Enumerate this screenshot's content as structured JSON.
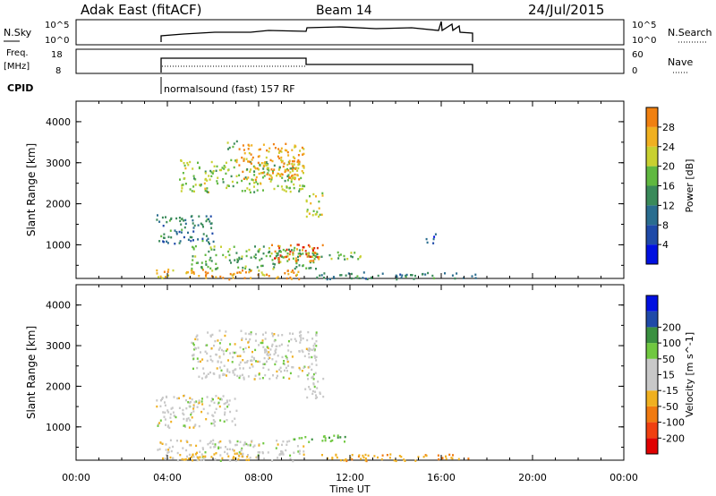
{
  "header": {
    "station": "Adak East (fitACF)",
    "beam": "Beam 14",
    "date": "24/Jul/2015"
  },
  "strip_labels": {
    "nsky": "N.Sky",
    "nsky_top": "10^5",
    "nsky_bottom": "10^0",
    "freq": "Freq.",
    "freq_unit": "[MHz]",
    "freq_top": "18",
    "freq_bottom": "8",
    "cpid": "CPID",
    "nsearch": "N.Search",
    "nsearch_top": "10^5",
    "nsearch_bottom": "10^0",
    "nave": "Nave",
    "nave_top": "60",
    "nave_bottom": "0",
    "cpid_text": "normalsound (fast) 157 RF"
  },
  "colors": {
    "power": [
      "#0010e0",
      "#1f4aa8",
      "#2a6d8f",
      "#3a8a5a",
      "#60b840",
      "#c8d030",
      "#f0b020",
      "#f08010",
      "#e03010",
      "#e00000"
    ],
    "velocity": [
      "#e00000",
      "#f04010",
      "#f07a10",
      "#f0b020",
      "#c8c8c8",
      "#c8c8c8",
      "#70c840",
      "#3a9040",
      "#1f4aa8",
      "#0010e0"
    ]
  },
  "chart_data": [
    {
      "type": "heatmap",
      "name": "power",
      "xlabel": "",
      "ylabel": "Slant Range [km]",
      "xlim": [
        "00:00",
        "24:00"
      ],
      "ylim": [
        180,
        4500
      ],
      "yticks": [
        "1000",
        "2000",
        "3000",
        "4000"
      ],
      "colorbar_label": "Power [dB]",
      "colorbar_ticks": [
        "4",
        "8",
        "12",
        "16",
        "20",
        "24",
        "28"
      ],
      "regions": [
        {
          "t0": 3.5,
          "t1": 10.0,
          "r0": 180,
          "r1": 420,
          "value": 20
        },
        {
          "t0": 3.5,
          "t1": 6.0,
          "r0": 1050,
          "r1": 1750,
          "value": 8
        },
        {
          "t0": 5.0,
          "t1": 10.5,
          "r0": 420,
          "r1": 1000,
          "value": 12
        },
        {
          "t0": 4.5,
          "t1": 10.0,
          "r0": 2300,
          "r1": 3100,
          "value": 14
        },
        {
          "t0": 7.0,
          "t1": 10.0,
          "r0": 2600,
          "r1": 3500,
          "value": 20
        },
        {
          "t0": 8.5,
          "t1": 10.8,
          "r0": 600,
          "r1": 1050,
          "value": 24
        },
        {
          "t0": 10.0,
          "t1": 10.8,
          "r0": 1700,
          "r1": 2300,
          "value": 16
        },
        {
          "t0": 10.0,
          "t1": 12.5,
          "r0": 650,
          "r1": 850,
          "value": 12
        },
        {
          "t0": 6.5,
          "t1": 7.2,
          "r0": 3350,
          "r1": 3550,
          "value": 12
        },
        {
          "t0": 10.5,
          "t1": 17.5,
          "r0": 180,
          "r1": 350,
          "value": 8
        },
        {
          "t0": 15.3,
          "t1": 15.8,
          "r0": 1050,
          "r1": 1300,
          "value": 4
        }
      ]
    },
    {
      "type": "heatmap",
      "name": "velocity",
      "xlabel": "Time UT",
      "ylabel": "Slant Range [km]",
      "xlim": [
        "00:00",
        "24:00"
      ],
      "ylim": [
        180,
        4500
      ],
      "xticks": [
        "00:00",
        "04:00",
        "08:00",
        "12:00",
        "16:00",
        "20:00",
        "00:00"
      ],
      "yticks": [
        "1000",
        "2000",
        "3000",
        "4000"
      ],
      "colorbar_label": "Velocity [m s^-1]",
      "colorbar_ticks": [
        "-200",
        "-100",
        "-50",
        "-15",
        "15",
        "50",
        "100",
        "200"
      ],
      "regions": [
        {
          "t0": 3.5,
          "t1": 10.0,
          "r0": 180,
          "r1": 700,
          "value": 0
        },
        {
          "t0": 3.5,
          "t1": 7.0,
          "r0": 1000,
          "r1": 1800,
          "value": 0
        },
        {
          "t0": 5.0,
          "t1": 10.5,
          "r0": 2200,
          "r1": 3400,
          "value": 0
        },
        {
          "t0": 9.5,
          "t1": 11.8,
          "r0": 650,
          "r1": 850,
          "value": 40
        },
        {
          "t0": 4.5,
          "t1": 8.0,
          "r0": 200,
          "r1": 380,
          "value": -30
        },
        {
          "t0": 10.0,
          "t1": 10.8,
          "r0": 1700,
          "r1": 2300,
          "value": 0
        },
        {
          "t0": 10.5,
          "t1": 17.5,
          "r0": 180,
          "r1": 350,
          "value": -40
        }
      ]
    }
  ]
}
